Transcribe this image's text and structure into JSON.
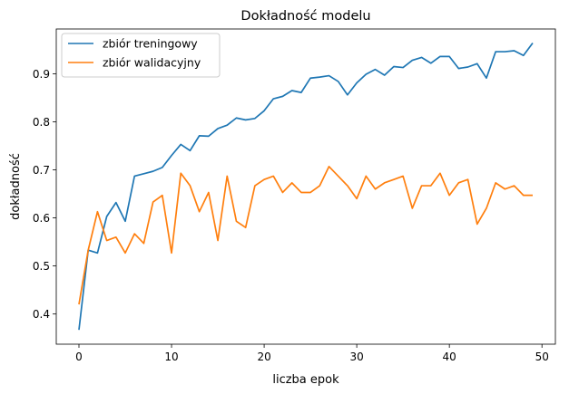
{
  "chart_data": {
    "type": "line",
    "title": "Dokładność modelu",
    "xlabel": "liczba epok",
    "ylabel": "dokładność",
    "xlim": [
      -2.45,
      51.45
    ],
    "ylim": [
      0.3372,
      0.9932
    ],
    "xticks": [
      0,
      10,
      20,
      30,
      40,
      50
    ],
    "xtick_labels": [
      "0",
      "10",
      "20",
      "30",
      "40",
      "50"
    ],
    "yticks": [
      0.4,
      0.5,
      0.6,
      0.7,
      0.8,
      0.9
    ],
    "ytick_labels": [
      "0.4",
      "0.5",
      "0.6",
      "0.7",
      "0.8",
      "0.9"
    ],
    "grid": false,
    "legend": "top-left",
    "x": [
      0,
      1,
      2,
      3,
      4,
      5,
      6,
      7,
      8,
      9,
      10,
      11,
      12,
      13,
      14,
      15,
      16,
      17,
      18,
      19,
      20,
      21,
      22,
      23,
      24,
      25,
      26,
      27,
      28,
      29,
      30,
      31,
      32,
      33,
      34,
      35,
      36,
      37,
      38,
      39,
      40,
      41,
      42,
      43,
      44,
      45,
      46,
      47,
      48,
      49
    ],
    "series": [
      {
        "name": "zbiór treningowy",
        "color": "#1f77b4",
        "values": [
          0.367,
          0.533,
          0.527,
          0.603,
          0.632,
          0.593,
          0.687,
          0.692,
          0.697,
          0.705,
          0.73,
          0.753,
          0.74,
          0.771,
          0.77,
          0.786,
          0.793,
          0.808,
          0.804,
          0.807,
          0.823,
          0.848,
          0.853,
          0.865,
          0.861,
          0.891,
          0.893,
          0.896,
          0.884,
          0.856,
          0.881,
          0.899,
          0.909,
          0.897,
          0.915,
          0.913,
          0.928,
          0.934,
          0.922,
          0.936,
          0.936,
          0.911,
          0.914,
          0.921,
          0.891,
          0.946,
          0.946,
          0.948,
          0.938,
          0.964
        ]
      },
      {
        "name": "zbiór walidacyjny",
        "color": "#ff7f0e",
        "values": [
          0.42,
          0.533,
          0.613,
          0.553,
          0.56,
          0.527,
          0.567,
          0.547,
          0.633,
          0.647,
          0.527,
          0.693,
          0.667,
          0.613,
          0.653,
          0.553,
          0.687,
          0.593,
          0.58,
          0.667,
          0.68,
          0.687,
          0.653,
          0.673,
          0.653,
          0.653,
          0.667,
          0.707,
          0.687,
          0.667,
          0.64,
          0.687,
          0.66,
          0.673,
          0.68,
          0.687,
          0.62,
          0.667,
          0.667,
          0.693,
          0.647,
          0.673,
          0.68,
          0.587,
          0.62,
          0.673,
          0.66,
          0.667,
          0.647,
          0.647
        ]
      }
    ]
  }
}
